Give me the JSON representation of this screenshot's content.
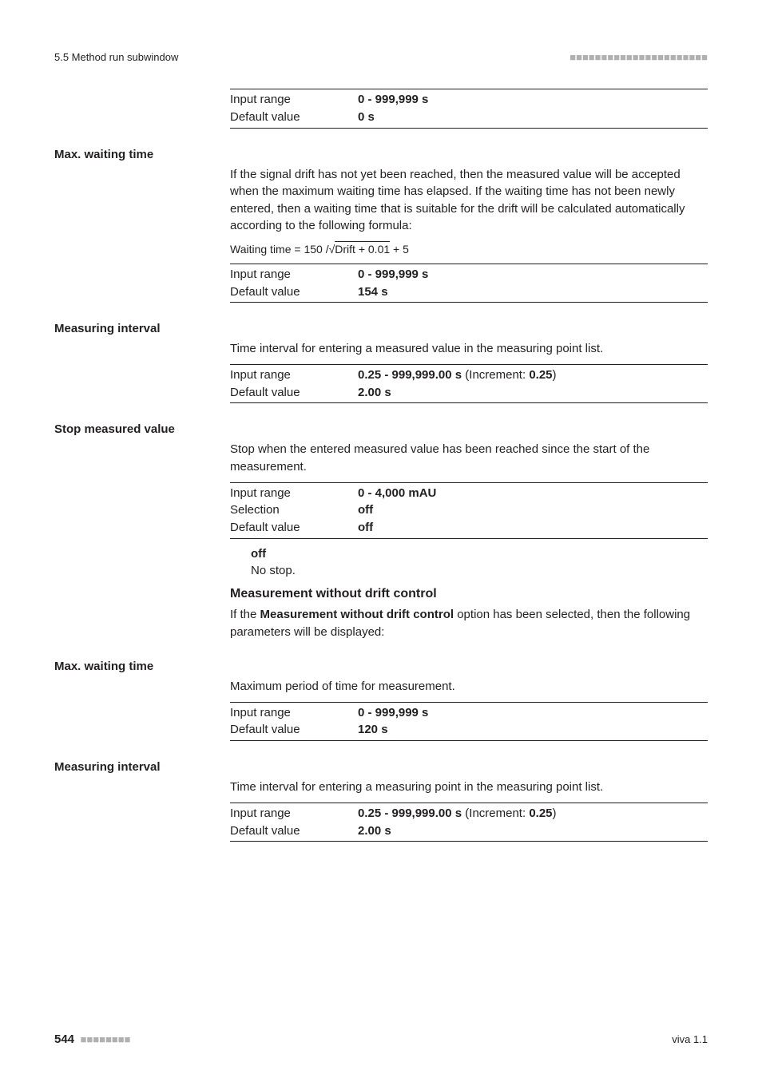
{
  "header": {
    "left": "5.5 Method run subwindow",
    "right": "■■■■■■■■■■■■■■■■■■■■■■"
  },
  "table_intro": {
    "rows": [
      {
        "label": "Input range",
        "value": "0 - 999,999 s"
      },
      {
        "label": "Default value",
        "value": "0 s"
      }
    ]
  },
  "max_waiting_1": {
    "heading": "Max. waiting time",
    "body": "If the signal drift has not yet been reached, then the measured value will be accepted when the maximum waiting time has elapsed. If the waiting time has not been newly entered, then a waiting time that is suitable for the drift will be calculated automatically according to the following formula:",
    "formula_prefix": "Waiting time = 150 /",
    "formula_radicand": "Drift + 0.01",
    "formula_suffix": " + 5",
    "rows": [
      {
        "label": "Input range",
        "value": "0 - 999,999 s"
      },
      {
        "label": "Default value",
        "value": "154 s"
      }
    ]
  },
  "measuring_interval_1": {
    "heading": "Measuring interval",
    "body": "Time interval for entering a measured value in the measuring point list.",
    "rows": [
      {
        "label": "Input range",
        "value_bold": "0.25 - 999,999.00 s",
        "value_after": " (Increment: ",
        "value_bold2": "0.25",
        "value_after2": ")"
      },
      {
        "label": "Default value",
        "value_bold": "2.00 s"
      }
    ]
  },
  "stop_measured": {
    "heading": "Stop measured value",
    "body": "Stop when the entered measured value has been reached since the start of the measurement.",
    "rows": [
      {
        "label": "Input range",
        "value": "0 - 4,000 mAU"
      },
      {
        "label": "Selection",
        "value": "off"
      },
      {
        "label": "Default value",
        "value": "off"
      }
    ],
    "off_label": "off",
    "off_text": "No stop."
  },
  "no_drift": {
    "heading": "Measurement without drift control",
    "body_prefix": "If the ",
    "body_bold": "Measurement without drift control",
    "body_suffix": " option has been selected, then the following parameters will be displayed:"
  },
  "max_waiting_2": {
    "heading": "Max. waiting time",
    "body": "Maximum period of time for measurement.",
    "rows": [
      {
        "label": "Input range",
        "value": "0 - 999,999 s"
      },
      {
        "label": "Default value",
        "value": "120 s"
      }
    ]
  },
  "measuring_interval_2": {
    "heading": "Measuring interval",
    "body": "Time interval for entering a measuring point in the measuring point list.",
    "rows": [
      {
        "label": "Input range",
        "value_bold": "0.25 - 999,999.00 s",
        "value_after": " (Increment: ",
        "value_bold2": "0.25",
        "value_after2": ")"
      },
      {
        "label": "Default value",
        "value_bold": "2.00 s"
      }
    ]
  },
  "footer": {
    "page": "544",
    "blocks": "■■■■■■■■",
    "right": "viva 1.1"
  }
}
